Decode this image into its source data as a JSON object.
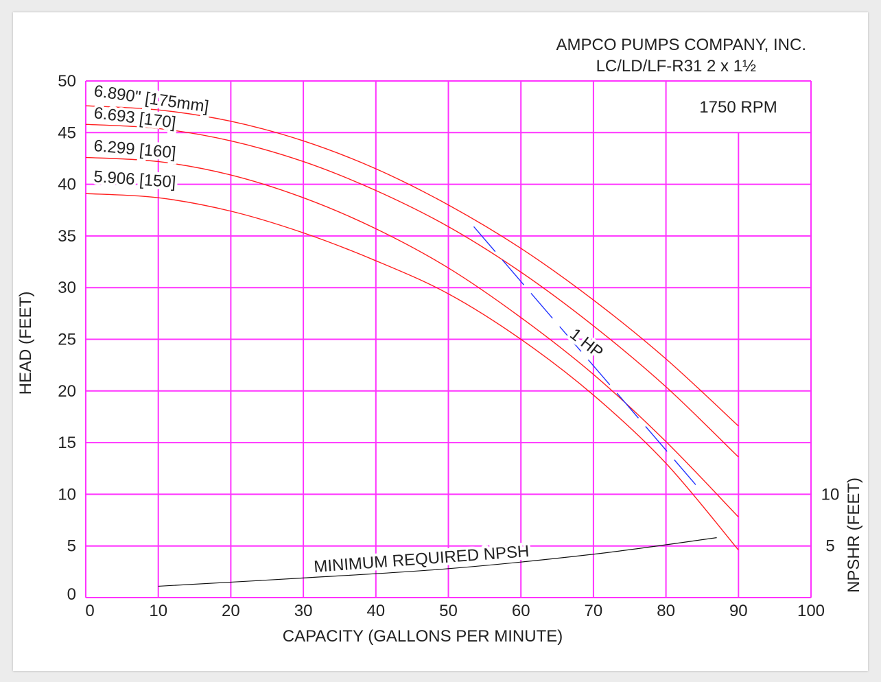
{
  "chart_data": {
    "type": "line",
    "title": "AMPCO PUMPS COMPANY, INC.",
    "subtitle": "LC/LD/LF-R31 2 x 1½",
    "annotation_rpm": "1750 RPM",
    "xlabel": "CAPACITY (GALLONS PER MINUTE)",
    "ylabel": "HEAD (FEET)",
    "y2label": "NPSHR (FEET)",
    "xlim": [
      0,
      100
    ],
    "ylim": [
      0,
      50
    ],
    "xticks": [
      "0",
      "10",
      "20",
      "30",
      "40",
      "50",
      "60",
      "70",
      "80",
      "90",
      "100"
    ],
    "yticks": [
      "0",
      "5",
      "10",
      "15",
      "20",
      "25",
      "30",
      "35",
      "40",
      "45",
      "50"
    ],
    "y2ticks": [
      "5",
      "10"
    ],
    "grid": true,
    "grid_color": "#ff33ff",
    "x": [
      0,
      10,
      20,
      30,
      40,
      50,
      60,
      70,
      80,
      90
    ],
    "series": [
      {
        "name": "6.890\" [175mm]",
        "color": "#ff2020",
        "values": [
          47.6,
          47.2,
          46.1,
          44.2,
          41.5,
          38.0,
          33.8,
          28.8,
          23.1,
          16.6
        ]
      },
      {
        "name": "6.693 [170]",
        "color": "#ff2020",
        "values": [
          45.8,
          45.4,
          44.2,
          42.2,
          39.4,
          35.9,
          31.5,
          26.3,
          20.4,
          13.6
        ]
      },
      {
        "name": "6.299 [160]",
        "color": "#ff2020",
        "values": [
          42.6,
          42.2,
          40.9,
          38.7,
          35.7,
          31.9,
          27.1,
          21.6,
          15.1,
          7.8
        ]
      },
      {
        "name": "5.906 [150]",
        "color": "#ff2020",
        "values": [
          39.1,
          38.7,
          37.4,
          35.3,
          32.6,
          29.4,
          25.0,
          19.6,
          13.0,
          4.6
        ]
      }
    ],
    "hp_line": {
      "name": "1 HP",
      "color": "#2233ff",
      "points": [
        [
          53.5,
          35.9
        ],
        [
          84.5,
          10.6
        ]
      ]
    },
    "npsh_line": {
      "name": "MINIMUM REQUIRED NPSH",
      "color": "#111111",
      "points": [
        [
          10,
          1.1
        ],
        [
          30,
          1.9
        ],
        [
          50,
          2.8
        ],
        [
          70,
          4.2
        ],
        [
          87,
          5.8
        ]
      ]
    }
  }
}
